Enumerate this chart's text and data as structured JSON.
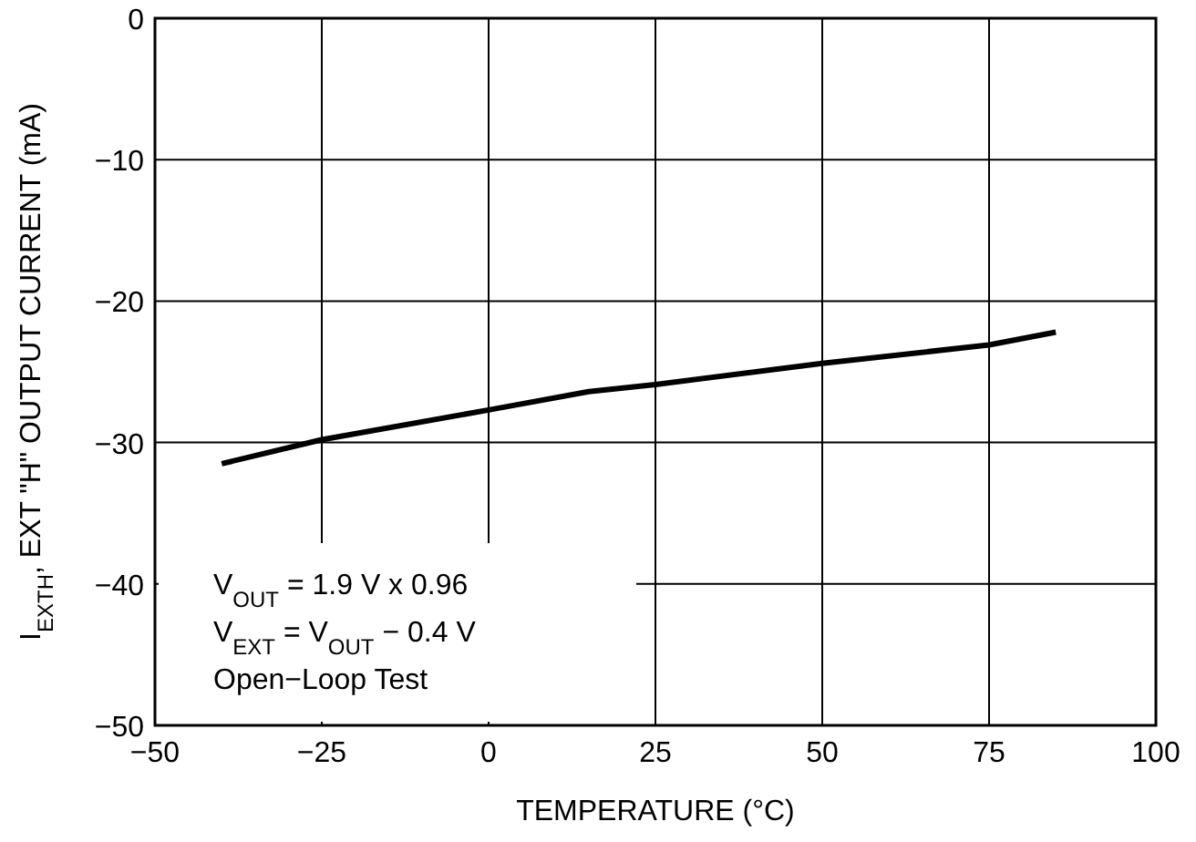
{
  "chart_data": {
    "type": "line",
    "xlabel": "TEMPERATURE (°C)",
    "ylabel": "I$_{EXTH}$, EXT \"H\" OUTPUT CURRENT (mA)",
    "xlim": [
      -50,
      100
    ],
    "ylim": [
      -50,
      0
    ],
    "xticks": [
      {
        "value": -50,
        "label": "−50"
      },
      {
        "value": -25,
        "label": "−25"
      },
      0,
      25,
      50,
      75,
      100
    ],
    "yticks": [
      {
        "value": -50,
        "label": "−50"
      },
      {
        "value": -40,
        "label": "−40"
      },
      {
        "value": -30,
        "label": "−30"
      },
      {
        "value": -20,
        "label": "−20"
      },
      {
        "value": -10,
        "label": "−10"
      },
      0
    ],
    "grid": true,
    "marker": "none",
    "line_style": "solid",
    "series": [
      {
        "color": "#000000",
        "x": [
          -40,
          -25,
          0,
          15,
          25,
          50,
          75,
          85
        ],
        "values": [
          -31.5,
          -29.8,
          -27.7,
          -26.4,
          -25.9,
          -24.4,
          -23.1,
          -22.2
        ]
      }
    ],
    "annotations": [
      "V$_{OUT}$ = 1.9 V x 0.96",
      "V$_{EXT}$ = V$_{OUT}$ − 0.4 V",
      "Open−Loop Test"
    ]
  }
}
